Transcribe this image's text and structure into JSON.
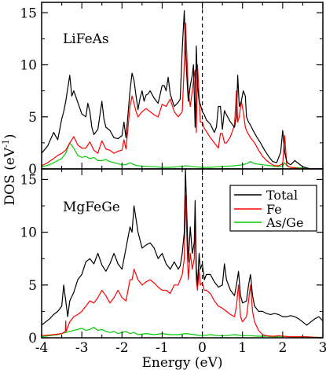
{
  "chart_data": [
    {
      "type": "line",
      "panel_label": "LiFeAs",
      "xlim": [
        -4,
        3
      ],
      "ylim": [
        0,
        16
      ],
      "fermi_level_x": 0,
      "series": [
        {
          "name": "Total",
          "color": "#000000",
          "x": [
            -4,
            -3.85,
            -3.7,
            -3.6,
            -3.5,
            -3.45,
            -3.4,
            -3.3,
            -3.25,
            -3.2,
            -3.1,
            -3.0,
            -2.9,
            -2.85,
            -2.8,
            -2.75,
            -2.7,
            -2.6,
            -2.5,
            -2.45,
            -2.4,
            -2.3,
            -2.2,
            -2.1,
            -2.0,
            -1.95,
            -1.9,
            -1.8,
            -1.75,
            -1.7,
            -1.65,
            -1.6,
            -1.55,
            -1.5,
            -1.45,
            -1.4,
            -1.35,
            -1.3,
            -1.2,
            -1.1,
            -1.0,
            -0.95,
            -0.9,
            -0.85,
            -0.8,
            -0.7,
            -0.6,
            -0.55,
            -0.5,
            -0.45,
            -0.42,
            -0.38,
            -0.35,
            -0.3,
            -0.25,
            -0.22,
            -0.18,
            -0.15,
            -0.12,
            -0.08,
            -0.05,
            0,
            0.05,
            0.1,
            0.2,
            0.3,
            0.35,
            0.4,
            0.45,
            0.5,
            0.55,
            0.6,
            0.7,
            0.8,
            0.85,
            0.88,
            0.92,
            0.97,
            1.02,
            1.07,
            1.1,
            1.15,
            1.2,
            1.25,
            1.35,
            1.45,
            1.55,
            1.65,
            1.75,
            1.85,
            1.95,
            2.0,
            2.05,
            2.1,
            2.15,
            2.2,
            2.3,
            2.4,
            2.5,
            2.6,
            2.65,
            2.7,
            2.8,
            2.9,
            3.0
          ],
          "values": [
            1.5,
            2.2,
            3.5,
            2.8,
            4.8,
            5.5,
            6.5,
            9.0,
            7.0,
            7.5,
            6.4,
            5.3,
            5.0,
            6.3,
            5.5,
            4.0,
            3.3,
            3.8,
            6.5,
            4.8,
            4.0,
            3.7,
            3.0,
            2.9,
            3.2,
            4.5,
            3.0,
            7.5,
            9.2,
            8.5,
            7.0,
            5.7,
            6.8,
            7.5,
            6.5,
            7.1,
            7.2,
            7.5,
            6.8,
            6.3,
            8.0,
            8.0,
            7.5,
            8.8,
            7.2,
            6.0,
            6.4,
            6.7,
            11.5,
            15.2,
            11.5,
            8.5,
            6.5,
            8.0,
            9.0,
            10.0,
            4.0,
            11.8,
            8.0,
            6.5,
            6.2,
            5.5,
            5.2,
            4.7,
            4.3,
            3.5,
            4.0,
            6.0,
            6.0,
            3.8,
            5.6,
            5.2,
            4.5,
            4.0,
            5.0,
            9.0,
            6.0,
            6.5,
            7.5,
            7.0,
            5.0,
            4.5,
            4.2,
            3.8,
            3.1,
            2.5,
            1.8,
            1.2,
            0.7,
            0.6,
            1.6,
            3.7,
            1.6,
            0.7,
            0.5,
            0.4,
            0.8,
            0.5,
            0.2,
            0.1,
            0.05,
            0,
            0,
            0,
            0
          ]
        },
        {
          "name": "Fe",
          "color": "#ff0000",
          "x": [
            -4,
            -3.85,
            -3.7,
            -3.6,
            -3.5,
            -3.4,
            -3.3,
            -3.2,
            -3.1,
            -3.0,
            -2.9,
            -2.8,
            -2.7,
            -2.6,
            -2.5,
            -2.4,
            -2.3,
            -2.2,
            -2.1,
            -2.0,
            -1.95,
            -1.9,
            -1.8,
            -1.75,
            -1.7,
            -1.65,
            -1.6,
            -1.5,
            -1.4,
            -1.3,
            -1.2,
            -1.1,
            -1.0,
            -0.9,
            -0.8,
            -0.7,
            -0.6,
            -0.5,
            -0.45,
            -0.42,
            -0.38,
            -0.35,
            -0.3,
            -0.25,
            -0.22,
            -0.18,
            -0.15,
            -0.12,
            -0.08,
            -0.05,
            0,
            0.05,
            0.1,
            0.2,
            0.3,
            0.4,
            0.45,
            0.5,
            0.55,
            0.6,
            0.7,
            0.8,
            0.85,
            0.88,
            0.92,
            0.97,
            1.02,
            1.07,
            1.12,
            1.2,
            1.3,
            1.4,
            1.5,
            1.6,
            1.7,
            1.8,
            1.9,
            2.0,
            2.05,
            2.1,
            2.15,
            2.2,
            2.3,
            2.4,
            2.5,
            2.6,
            2.7,
            2.8,
            3.0
          ],
          "values": [
            0.3,
            0.6,
            1.0,
            1.3,
            1.5,
            1.8,
            2.5,
            3.1,
            2.3,
            2.0,
            2.0,
            2.6,
            1.8,
            1.5,
            2.7,
            1.9,
            1.8,
            1.5,
            1.7,
            1.8,
            2.8,
            1.9,
            6.0,
            7.0,
            6.3,
            5.5,
            5.0,
            5.5,
            5.8,
            5.5,
            5.2,
            5.0,
            6.2,
            6.0,
            6.7,
            5.5,
            5.0,
            5.5,
            10.0,
            14.0,
            10.5,
            7.5,
            6.0,
            7.5,
            8.5,
            9.5,
            3.5,
            10.0,
            7.0,
            4.5,
            4.5,
            3.9,
            3.6,
            3.0,
            2.5,
            2.0,
            3.4,
            3.4,
            2.5,
            2.5,
            3.1,
            4.2,
            7.5,
            4.5,
            5.0,
            6.5,
            5.5,
            4.0,
            3.5,
            3.0,
            2.5,
            1.8,
            1.2,
            0.8,
            0.5,
            0.3,
            0.3,
            0.5,
            3.2,
            0.4,
            0.2,
            0.15,
            0.1,
            0.05,
            0,
            0,
            0,
            0,
            0
          ]
        },
        {
          "name": "As/Ge",
          "color": "#00cc00",
          "x": [
            -4,
            -3.8,
            -3.6,
            -3.5,
            -3.4,
            -3.3,
            -3.2,
            -3.1,
            -3.0,
            -2.9,
            -2.8,
            -2.7,
            -2.6,
            -2.5,
            -2.4,
            -2.3,
            -2.2,
            -2.1,
            -2.0,
            -1.9,
            -1.8,
            -1.7,
            -1.6,
            -1.4,
            -1.2,
            -1.0,
            -0.8,
            -0.6,
            -0.4,
            -0.2,
            0,
            0.2,
            0.4,
            0.6,
            0.8,
            1.0,
            1.1,
            1.2,
            1.3,
            1.5,
            1.7,
            1.9,
            2.0,
            2.05,
            2.1,
            2.2,
            2.4,
            2.6,
            2.8,
            3.0
          ],
          "values": [
            0.2,
            0.4,
            0.8,
            1.0,
            1.5,
            2.5,
            2.0,
            1.3,
            1.1,
            1.2,
            1.0,
            1.1,
            0.8,
            0.8,
            0.9,
            0.7,
            0.6,
            0.5,
            0.4,
            0.4,
            0.6,
            0.4,
            0.3,
            0.25,
            0.2,
            0.15,
            0.15,
            0.2,
            0.3,
            0.2,
            0.15,
            0.15,
            0.2,
            0.25,
            0.3,
            0.4,
            0.5,
            0.7,
            0.5,
            0.4,
            0.3,
            0.2,
            0.3,
            0.6,
            0.3,
            0.15,
            0.1,
            0.05,
            0,
            0
          ]
        }
      ]
    },
    {
      "type": "line",
      "panel_label": "MgFeGe",
      "xlim": [
        -4,
        3
      ],
      "ylim": [
        0,
        16
      ],
      "fermi_level_x": 0,
      "series": [
        {
          "name": "Total",
          "color": "#000000",
          "x": [
            -4,
            -3.9,
            -3.8,
            -3.7,
            -3.6,
            -3.5,
            -3.45,
            -3.4,
            -3.35,
            -3.3,
            -3.2,
            -3.1,
            -3.0,
            -2.9,
            -2.8,
            -2.7,
            -2.6,
            -2.5,
            -2.4,
            -2.3,
            -2.2,
            -2.1,
            -2.0,
            -1.9,
            -1.8,
            -1.75,
            -1.7,
            -1.6,
            -1.5,
            -1.4,
            -1.3,
            -1.2,
            -1.1,
            -1.0,
            -0.95,
            -0.9,
            -0.8,
            -0.7,
            -0.6,
            -0.55,
            -0.5,
            -0.45,
            -0.42,
            -0.38,
            -0.35,
            -0.3,
            -0.25,
            -0.2,
            -0.18,
            -0.15,
            -0.12,
            -0.08,
            -0.05,
            0,
            0.05,
            0.1,
            0.2,
            0.3,
            0.4,
            0.5,
            0.55,
            0.6,
            0.7,
            0.8,
            0.85,
            0.9,
            0.95,
            1.0,
            1.1,
            1.15,
            1.2,
            1.25,
            1.3,
            1.4,
            1.5,
            1.6,
            1.7,
            1.8,
            1.9,
            2.0,
            2.1,
            2.2,
            2.3,
            2.4,
            2.5,
            2.6,
            2.7,
            2.8,
            2.9,
            3.0
          ],
          "values": [
            1.2,
            1.5,
            1.8,
            2.2,
            2.5,
            3.0,
            5.0,
            3.5,
            2.0,
            3.5,
            4.3,
            5.5,
            6.0,
            7.2,
            7.5,
            7.0,
            8.0,
            6.9,
            6.3,
            7.0,
            8.0,
            7.0,
            6.5,
            8.5,
            10.5,
            10.0,
            12.5,
            10.0,
            8.5,
            8.8,
            9.0,
            8.5,
            7.5,
            8.0,
            7.5,
            7.0,
            6.5,
            7.2,
            6.5,
            6.8,
            8.0,
            10.0,
            16.0,
            11.0,
            7.2,
            10.5,
            8.0,
            9.0,
            13.0,
            6.5,
            5.0,
            8.0,
            6.5,
            7.0,
            5.5,
            6.0,
            6.0,
            5.3,
            4.8,
            5.0,
            7.0,
            5.5,
            4.5,
            4.0,
            5.0,
            6.3,
            4.0,
            3.3,
            3.5,
            5.0,
            6.0,
            4.0,
            3.0,
            2.5,
            2.5,
            2.3,
            2.2,
            2.3,
            2.2,
            2.0,
            2.0,
            2.1,
            2.0,
            1.8,
            1.5,
            1.2,
            1.5,
            1.8,
            2.0,
            1.6
          ]
        },
        {
          "name": "Fe",
          "color": "#ff0000",
          "x": [
            -4,
            -3.7,
            -3.5,
            -3.41,
            -3.4,
            -3.39,
            -3.3,
            -3.2,
            -3.1,
            -3.0,
            -2.9,
            -2.8,
            -2.7,
            -2.6,
            -2.5,
            -2.4,
            -2.3,
            -2.2,
            -2.1,
            -2.0,
            -1.9,
            -1.8,
            -1.75,
            -1.7,
            -1.6,
            -1.5,
            -1.4,
            -1.3,
            -1.2,
            -1.1,
            -1.0,
            -0.9,
            -0.8,
            -0.7,
            -0.6,
            -0.5,
            -0.45,
            -0.42,
            -0.38,
            -0.35,
            -0.3,
            -0.25,
            -0.2,
            -0.18,
            -0.15,
            -0.12,
            -0.08,
            -0.05,
            0,
            0.05,
            0.1,
            0.2,
            0.3,
            0.4,
            0.5,
            0.6,
            0.7,
            0.8,
            0.85,
            0.9,
            0.95,
            1.0,
            1.1,
            1.15,
            1.2,
            1.25,
            1.3,
            1.4,
            1.5,
            1.6,
            1.7,
            1.8,
            1.9,
            2.0,
            2.2,
            2.4,
            2.6,
            2.8,
            3.0
          ],
          "values": [
            0.2,
            0.3,
            0.4,
            0.6,
            1.6,
            0.6,
            1.5,
            2.0,
            2.2,
            2.5,
            3.0,
            3.5,
            3.3,
            3.8,
            4.5,
            4.0,
            3.3,
            3.8,
            4.5,
            3.8,
            3.5,
            5.5,
            5.5,
            6.5,
            5.5,
            5.0,
            5.3,
            5.5,
            5.2,
            4.8,
            4.5,
            4.5,
            4.2,
            5.0,
            5.0,
            6.0,
            7.5,
            13.5,
            9.0,
            5.5,
            8.0,
            6.5,
            7.5,
            11.5,
            5.5,
            4.5,
            6.5,
            5.0,
            5.2,
            4.5,
            4.5,
            4.2,
            3.5,
            3.0,
            2.8,
            2.5,
            2.2,
            2.0,
            3.0,
            5.0,
            2.0,
            1.5,
            2.0,
            3.5,
            5.0,
            2.5,
            1.5,
            0.7,
            0.3,
            0.2,
            0.15,
            0.15,
            0.2,
            0.15,
            0.1,
            0.1,
            0.1,
            0.05,
            0
          ]
        },
        {
          "name": "As/Ge",
          "color": "#00cc00",
          "x": [
            -4,
            -3.8,
            -3.6,
            -3.5,
            -3.4,
            -3.3,
            -3.2,
            -3.1,
            -3.0,
            -2.9,
            -2.8,
            -2.7,
            -2.6,
            -2.5,
            -2.4,
            -2.3,
            -2.2,
            -2.1,
            -2.0,
            -1.9,
            -1.8,
            -1.7,
            -1.6,
            -1.4,
            -1.2,
            -1.0,
            -0.8,
            -0.6,
            -0.4,
            -0.2,
            0,
            0.2,
            0.4,
            0.6,
            0.8,
            1.0,
            1.2,
            1.4,
            1.6,
            1.8,
            2.0,
            2.2,
            2.4,
            2.6,
            2.8,
            3.0
          ],
          "values": [
            0.1,
            0.2,
            0.3,
            0.4,
            0.5,
            0.6,
            0.7,
            0.8,
            0.9,
            0.7,
            0.8,
            1.0,
            0.7,
            0.8,
            0.6,
            0.5,
            0.6,
            0.4,
            0.5,
            0.6,
            0.4,
            0.5,
            0.3,
            0.4,
            0.3,
            0.4,
            0.3,
            0.3,
            0.4,
            0.3,
            0.2,
            0.3,
            0.2,
            0.2,
            0.3,
            0.2,
            0.2,
            0.15,
            0.15,
            0.1,
            0.15,
            0.1,
            0.1,
            0.1,
            0.05,
            0.05
          ]
        }
      ]
    }
  ],
  "axes": {
    "xlabel": "Energy (eV)",
    "ylabel_main": "DOS (eV",
    "ylabel_sup": "-1",
    "ylabel_end": ")",
    "xticks": [
      "-4",
      "-3",
      "-2",
      "-1",
      "0",
      "1",
      "2",
      "3"
    ],
    "yticks_top": [
      "0",
      "5",
      "10",
      "15"
    ],
    "yticks_bottom": [
      "0",
      "5",
      "10",
      "15"
    ]
  },
  "legend": {
    "items": [
      {
        "label": "Total",
        "color": "#000000"
      },
      {
        "label": "Fe",
        "color": "#ff0000"
      },
      {
        "label": "As/Ge",
        "color": "#00cc00"
      }
    ]
  }
}
